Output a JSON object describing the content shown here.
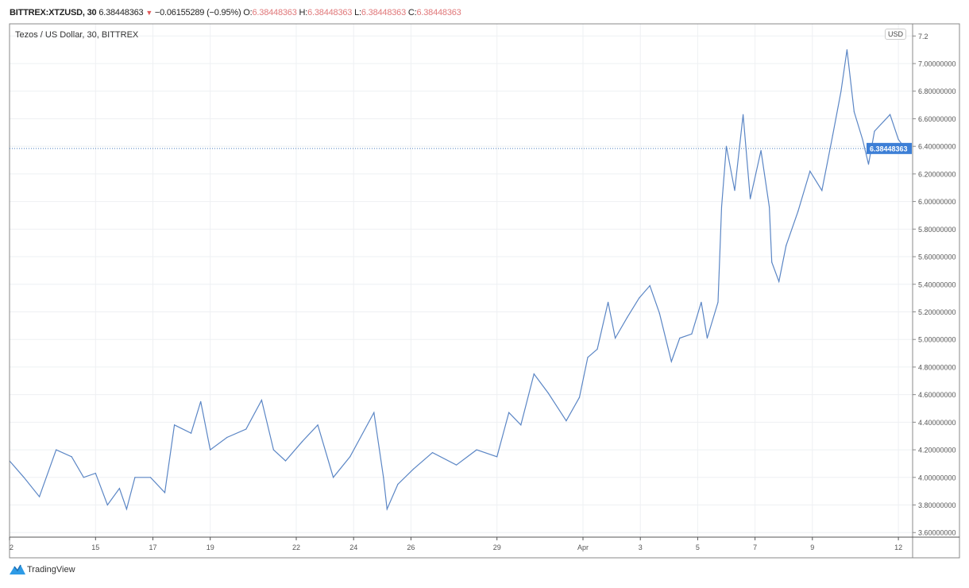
{
  "header": {
    "symbol": "BITTREX:XTZUSD, 30",
    "last": "6.38448363",
    "change_icon": "triangle-down-icon",
    "change": "−0.06155289 (−0.95%)",
    "open_label": "O:",
    "open": "6.38448363",
    "high_label": "H:",
    "high": "6.38448363",
    "low_label": "L:",
    "low": "6.38448363",
    "close_label": "C:",
    "close": "6.38448363"
  },
  "currency_badge": "USD",
  "brand": {
    "name": "TradingView",
    "icon": "tradingview-logo-icon"
  },
  "colors": {
    "line": "#5b86c5",
    "price_label_bg": "#3d7fd6",
    "down": "#e05a5a",
    "ohlc_values": "#e0787a"
  },
  "chart_data": {
    "type": "line",
    "title": "Tezos / US Dollar, 30, BITTREX",
    "xlabel": "",
    "ylabel": "",
    "ylim": [
      3.55,
      7.3
    ],
    "grid": true,
    "yticks": [
      "7.2",
      "7.00000000",
      "6.80000000",
      "6.60000000",
      "6.40000000",
      "6.20000000",
      "6.00000000",
      "5.80000000",
      "5.60000000",
      "5.40000000",
      "5.20000000",
      "5.00000000",
      "4.80000000",
      "4.60000000",
      "4.40000000",
      "4.20000000",
      "4.00000000",
      "3.80000000",
      "3.60000000"
    ],
    "ytick_values": [
      7.2,
      7.0,
      6.8,
      6.6,
      6.4,
      6.2,
      6.0,
      5.8,
      5.6,
      5.4,
      5.2,
      5.0,
      4.8,
      4.6,
      4.4,
      4.2,
      4.0,
      3.8,
      3.6
    ],
    "xticks": [
      {
        "label": "2",
        "t": "03-12 00:00"
      },
      {
        "label": "15",
        "t": "03-15 00:00"
      },
      {
        "label": "17",
        "t": "03-17 00:00"
      },
      {
        "label": "19",
        "t": "03-19 00:00"
      },
      {
        "label": "22",
        "t": "03-22 00:00"
      },
      {
        "label": "24",
        "t": "03-24 00:00"
      },
      {
        "label": "26",
        "t": "03-26 00:00"
      },
      {
        "label": "29",
        "t": "03-29 00:00"
      },
      {
        "label": "Apr",
        "t": "04-01 00:00"
      },
      {
        "label": "3",
        "t": "04-03 00:00"
      },
      {
        "label": "5",
        "t": "04-05 00:00"
      },
      {
        "label": "7",
        "t": "04-07 00:00"
      },
      {
        "label": "9",
        "t": "04-09 00:00"
      },
      {
        "label": "12",
        "t": "04-12 00:00"
      }
    ],
    "current_price": 6.38448363,
    "current_price_label": "6.38448363",
    "points": [
      [
        "03-12 00:00",
        4.12
      ],
      [
        "03-12 12:00",
        4.0
      ],
      [
        "03-13 01:00",
        3.86
      ],
      [
        "03-13 15:00",
        4.2
      ],
      [
        "03-14 04:00",
        4.15
      ],
      [
        "03-14 14:00",
        4.0
      ],
      [
        "03-15 00:00",
        4.03
      ],
      [
        "03-15 10:00",
        3.8
      ],
      [
        "03-15 20:00",
        3.92
      ],
      [
        "03-16 02:00",
        3.77
      ],
      [
        "03-16 09:00",
        4.0
      ],
      [
        "03-16 22:00",
        4.0
      ],
      [
        "03-17 10:00",
        3.89
      ],
      [
        "03-17 18:00",
        4.38
      ],
      [
        "03-18 08:00",
        4.32
      ],
      [
        "03-18 16:00",
        4.55
      ],
      [
        "03-19 00:00",
        4.2
      ],
      [
        "03-19 14:00",
        4.29
      ],
      [
        "03-20 06:00",
        4.35
      ],
      [
        "03-20 19:00",
        4.56
      ],
      [
        "03-21 05:00",
        4.2
      ],
      [
        "03-21 15:00",
        4.12
      ],
      [
        "03-22 05:00",
        4.26
      ],
      [
        "03-22 18:00",
        4.38
      ],
      [
        "03-23 07:00",
        4.0
      ],
      [
        "03-23 21:00",
        4.15
      ],
      [
        "03-24 17:00",
        4.47
      ],
      [
        "03-25 01:00",
        4.0
      ],
      [
        "03-25 04:00",
        3.77
      ],
      [
        "03-25 13:00",
        3.95
      ],
      [
        "03-26 02:00",
        4.06
      ],
      [
        "03-26 18:00",
        4.18
      ],
      [
        "03-27 14:00",
        4.09
      ],
      [
        "03-28 07:00",
        4.2
      ],
      [
        "03-29 00:00",
        4.15
      ],
      [
        "03-29 10:00",
        4.47
      ],
      [
        "03-29 20:00",
        4.38
      ],
      [
        "03-30 07:00",
        4.75
      ],
      [
        "03-30 19:00",
        4.61
      ],
      [
        "03-31 10:00",
        4.41
      ],
      [
        "03-31 21:00",
        4.58
      ],
      [
        "04-01 04:00",
        4.87
      ],
      [
        "04-01 12:00",
        4.93
      ],
      [
        "04-01 21:00",
        5.27
      ],
      [
        "04-02 03:00",
        5.01
      ],
      [
        "04-02 13:00",
        5.16
      ],
      [
        "04-02 23:00",
        5.3
      ],
      [
        "04-03 08:00",
        5.39
      ],
      [
        "04-03 16:00",
        5.19
      ],
      [
        "04-04 02:00",
        4.84
      ],
      [
        "04-04 09:00",
        5.01
      ],
      [
        "04-04 19:00",
        5.04
      ],
      [
        "04-05 03:00",
        5.27
      ],
      [
        "04-05 08:00",
        5.01
      ],
      [
        "04-05 17:00",
        5.27
      ],
      [
        "04-05 20:00",
        5.96
      ],
      [
        "04-06 00:00",
        6.4
      ],
      [
        "04-06 07:00",
        6.08
      ],
      [
        "04-06 14:00",
        6.63
      ],
      [
        "04-06 20:00",
        6.02
      ],
      [
        "04-07 05:00",
        6.37
      ],
      [
        "04-07 12:00",
        5.96
      ],
      [
        "04-07 14:00",
        5.56
      ],
      [
        "04-07 20:00",
        5.42
      ],
      [
        "04-08 02:00",
        5.68
      ],
      [
        "04-08 12:00",
        5.93
      ],
      [
        "04-08 22:00",
        6.22
      ],
      [
        "04-09 08:00",
        6.08
      ],
      [
        "04-09 17:00",
        6.48
      ],
      [
        "04-10 00:00",
        6.8
      ],
      [
        "04-10 05:00",
        7.1
      ],
      [
        "04-10 11:00",
        6.65
      ],
      [
        "04-10 18:00",
        6.45
      ],
      [
        "04-10 23:00",
        6.27
      ],
      [
        "04-11 04:00",
        6.51
      ],
      [
        "04-11 17:00",
        6.63
      ],
      [
        "04-12 00:00",
        6.45
      ],
      [
        "04-12 06:00",
        6.38
      ]
    ]
  }
}
